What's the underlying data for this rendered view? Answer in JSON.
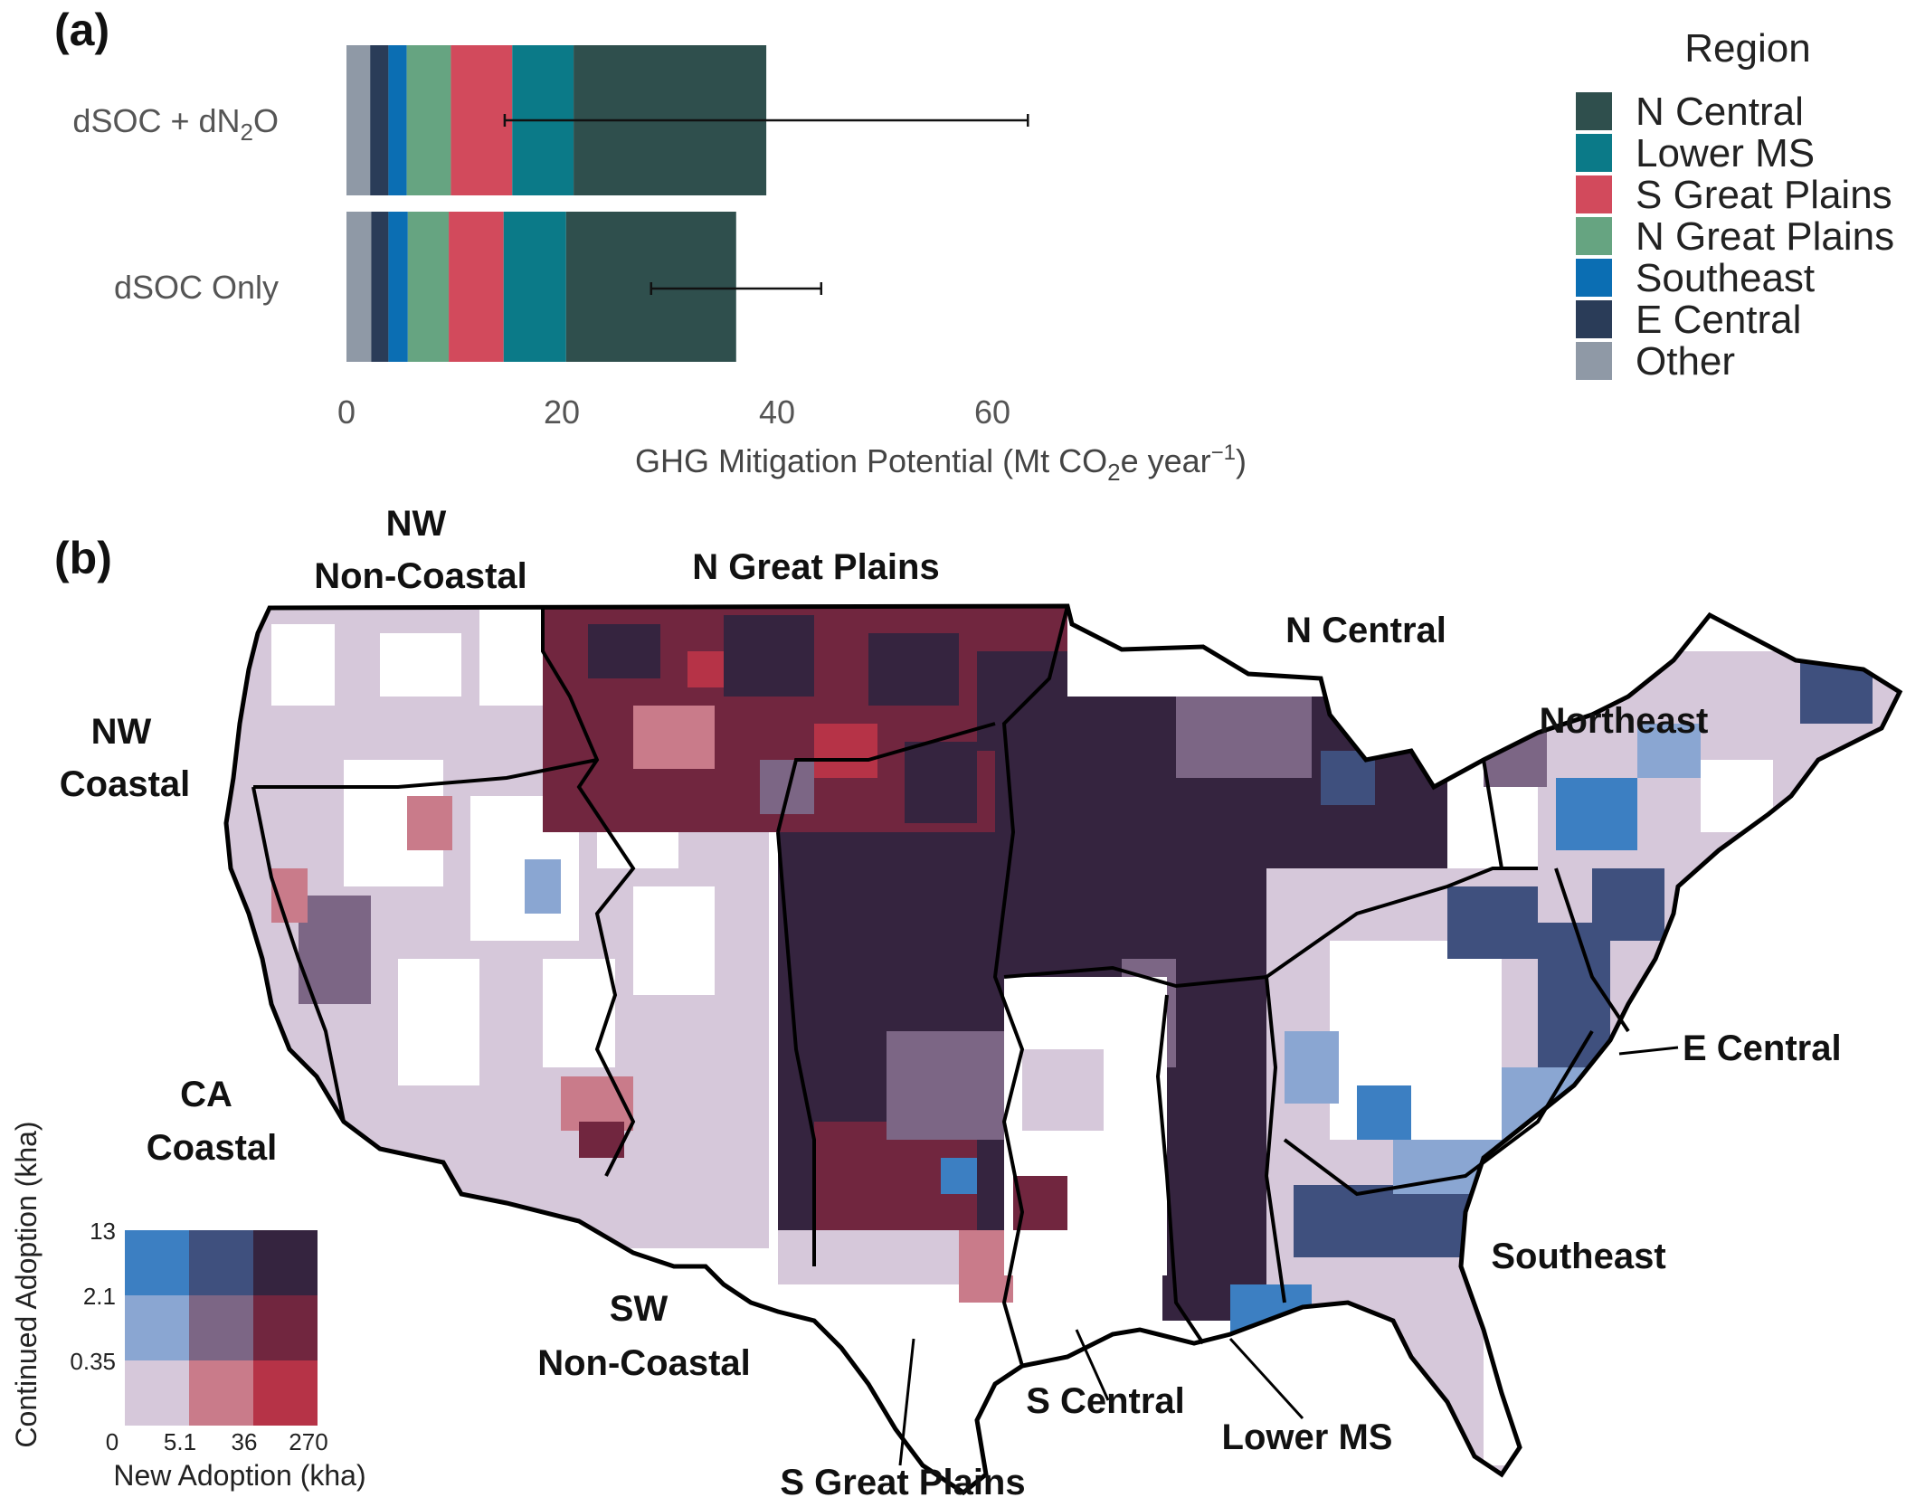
{
  "panels": {
    "a_label": "(a)",
    "b_label": "(b)"
  },
  "chart_data": [
    {
      "type": "bar",
      "orientation": "horizontal",
      "stacked": true,
      "categories": [
        "dSOC + dN2O",
        "dSOC Only"
      ],
      "category_labels": [
        {
          "main": "dSOC + dN",
          "sub": "2",
          "tail": "O"
        },
        {
          "main": "dSOC Only",
          "sub": "",
          "tail": ""
        }
      ],
      "series": [
        {
          "name": "Other",
          "color": "#8f99a6",
          "values": [
            2.2,
            2.3
          ]
        },
        {
          "name": "E Central",
          "color": "#2a3c58",
          "values": [
            1.7,
            1.6
          ]
        },
        {
          "name": "Southeast",
          "color": "#0b6eb3",
          "values": [
            1.7,
            1.8
          ]
        },
        {
          "name": "N Great Plains",
          "color": "#66a481",
          "values": [
            4.1,
            3.8
          ]
        },
        {
          "name": "S Great Plains",
          "color": "#d24a5c",
          "values": [
            5.7,
            5.1
          ]
        },
        {
          "name": "Lower MS",
          "color": "#0b7a88",
          "values": [
            5.7,
            5.8
          ]
        },
        {
          "name": "N Central",
          "color": "#2f4f4d",
          "values": [
            17.9,
            15.8
          ]
        }
      ],
      "error_bars": [
        {
          "category": "dSOC + dN2O",
          "low": 14.7,
          "high": 63.3
        },
        {
          "category": "dSOC Only",
          "low": 28.3,
          "high": 44.1
        }
      ],
      "xlim": [
        0,
        65
      ],
      "xticks": [
        0,
        20,
        40,
        60
      ],
      "xlabel": {
        "pre": "GHG Mitigation Potential (Mt CO",
        "sub": "2",
        "mid": "e  year",
        "sup": "−1",
        "post": ")"
      },
      "legend": {
        "title": "Region",
        "position": "right",
        "order": [
          "N Central",
          "Lower MS",
          "S Great Plains",
          "N Great Plains",
          "Southeast",
          "E Central",
          "Other"
        ]
      },
      "grid": false
    },
    {
      "type": "heatmap",
      "title": "",
      "xlabel": "New Adoption (kha)",
      "ylabel": "Continued Adoption (kha)",
      "x_ticks": [
        "0",
        "5.1",
        "36",
        "270"
      ],
      "y_ticks": [
        "0.35",
        "2.1",
        "13"
      ],
      "bivariate_colors": [
        [
          "#3c7fc2",
          "#3f507e",
          "#35243f"
        ],
        [
          "#8aa6d2",
          "#7c6685",
          "#71263f"
        ],
        [
          "#d6c8da",
          "#c97b8a",
          "#b63347"
        ]
      ]
    }
  ],
  "map": {
    "regions": [
      "NW Non-Coastal",
      "N Great Plains",
      "N Central",
      "Northeast",
      "NW Coastal",
      "E Central",
      "CA Coastal",
      "Southeast",
      "SW Non-Coastal",
      "S Central",
      "Lower MS",
      "S Great Plains"
    ],
    "labels": {
      "nw_noncoastal_1": "NW",
      "nw_noncoastal_2": "Non-Coastal",
      "n_great_plains": "N Great Plains",
      "n_central": "N Central",
      "northeast": "Northeast",
      "nw_coastal_1": "NW",
      "nw_coastal_2": "Coastal",
      "e_central": "E Central",
      "ca_coastal_1": "CA",
      "ca_coastal_2": "Coastal",
      "southeast": "Southeast",
      "sw_noncoastal_1": "SW",
      "sw_noncoastal_2": "Non-Coastal",
      "s_central": "S Central",
      "lower_ms": "Lower MS",
      "s_great_plains": "S Great Plains"
    },
    "colors": {
      "white": "#ffffff",
      "light_lilac": "#d6c8da",
      "mid_mauve": "#7c6685",
      "dark_plum": "#35243f",
      "wine": "#71263f",
      "rose": "#c97b8a",
      "red": "#b63347",
      "light_blue": "#8aa6d2",
      "blue": "#3c7fc2",
      "navy": "#3f507e"
    }
  }
}
